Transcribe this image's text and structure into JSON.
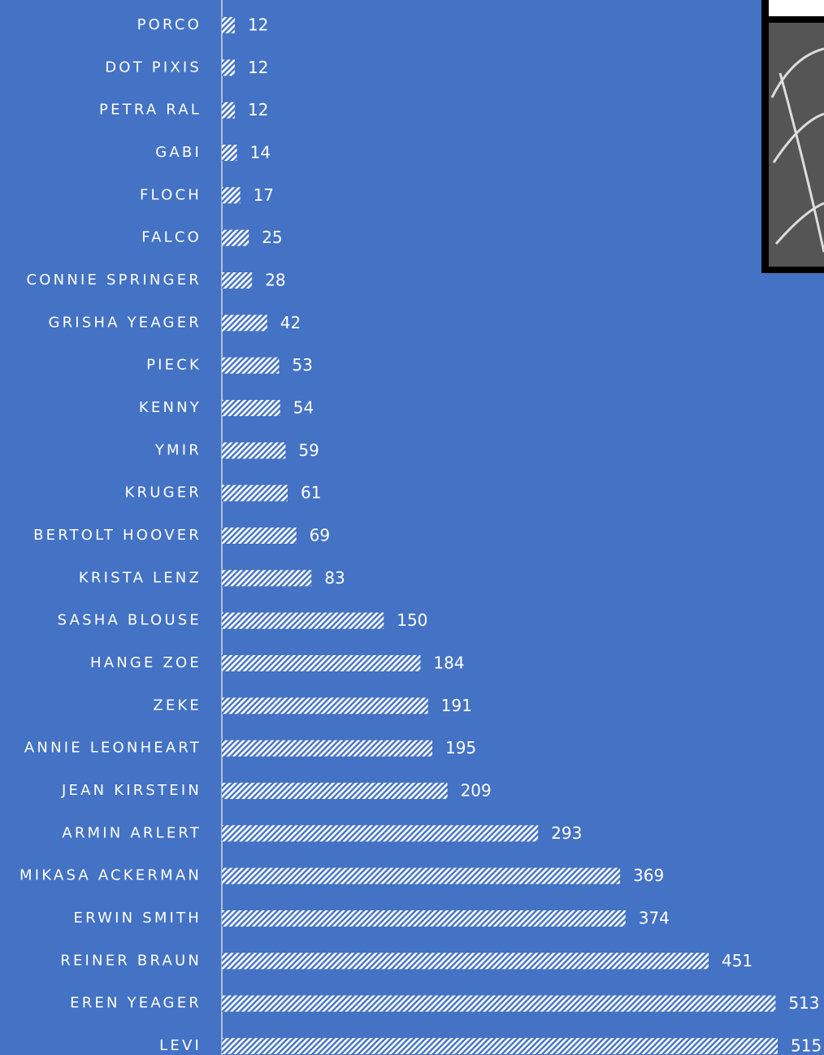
{
  "chart_data": {
    "type": "bar",
    "orientation": "horizontal",
    "categories": [
      "PORCO",
      "DOT PIXIS",
      "PETRA RAL",
      "GABI",
      "FLOCH",
      "FALCO",
      "CONNIE SPRINGER",
      "GRISHA YEAGER",
      "PIECK",
      "KENNY",
      "YMIR",
      "KRUGER",
      "BERTOLT HOOVER",
      "KRISTA LENZ",
      "SASHA BLOUSE",
      "HANGE ZOE",
      "ZEKE",
      "ANNIE LEONHEART",
      "JEAN KIRSTEIN",
      "ARMIN ARLERT",
      "MIKASA ACKERMAN",
      "ERWIN SMITH",
      "REINER BRAUN",
      "EREN YEAGER",
      "LEVI"
    ],
    "values": [
      12,
      12,
      12,
      14,
      17,
      25,
      28,
      42,
      53,
      54,
      59,
      61,
      69,
      83,
      150,
      184,
      191,
      195,
      209,
      293,
      369,
      374,
      451,
      513,
      515
    ],
    "color": "#ffffff",
    "background": "#4472c4",
    "pattern": "hatched"
  }
}
